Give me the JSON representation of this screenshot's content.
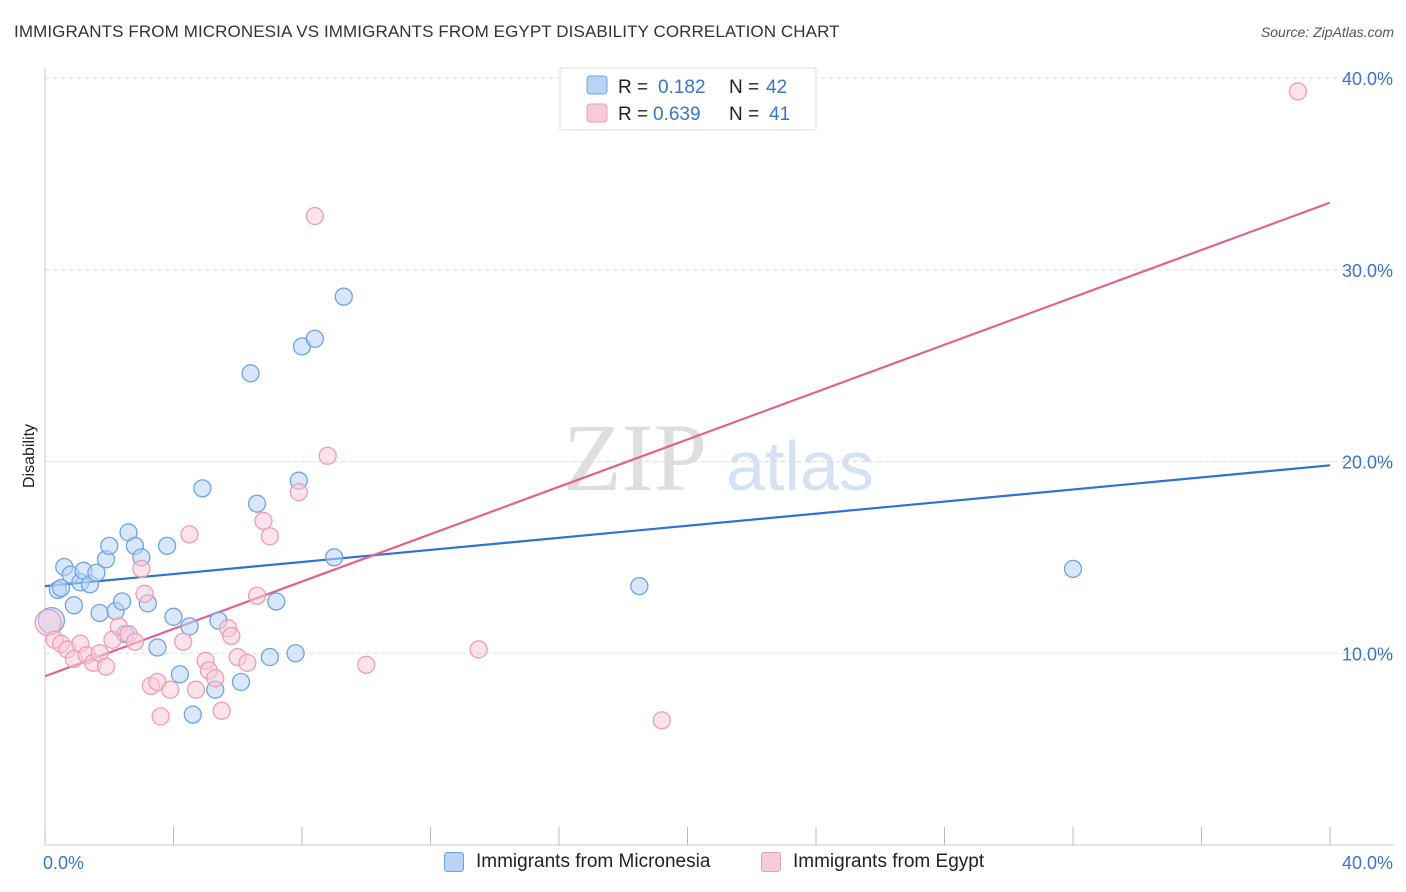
{
  "header": {
    "title": "IMMIGRANTS FROM MICRONESIA VS IMMIGRANTS FROM EGYPT DISABILITY CORRELATION CHART",
    "source": "Source: ZipAtlas.com"
  },
  "watermark": {
    "zip": "ZIP",
    "atlas": "atlas"
  },
  "legend": {
    "rows": [
      {
        "r_label": "R =",
        "r_value": "0.182",
        "n_label": "N =",
        "n_value": "42"
      },
      {
        "r_label": "R =",
        "r_value": "0.639",
        "n_label": "N =",
        "n_value": "41"
      }
    ]
  },
  "bottom_legend": {
    "items": [
      {
        "label": "Immigrants from Micronesia"
      },
      {
        "label": "Immigrants from Egypt"
      }
    ]
  },
  "chart_data": {
    "type": "scatter",
    "title": "IMMIGRANTS FROM MICRONESIA VS IMMIGRANTS FROM EGYPT DISABILITY CORRELATION CHART",
    "xlabel": "",
    "ylabel": "Disability",
    "xlim": [
      0,
      40
    ],
    "ylim": [
      0,
      40
    ],
    "x_tick_labels": [
      "0.0%",
      "40.0%"
    ],
    "y_ticks": [
      10,
      20,
      30,
      40
    ],
    "y_tick_labels": [
      "10.0%",
      "20.0%",
      "30.0%",
      "40.0%"
    ],
    "grid": "horizontal dashed",
    "legend_position": "top-center",
    "series": [
      {
        "name": "Immigrants from Micronesia",
        "color": "#6fa3e6",
        "fill": "#b9d3f5",
        "line_color": "#2f72cf",
        "R": 0.182,
        "N": 42,
        "trend": {
          "x": [
            0,
            40
          ],
          "y": [
            13.5,
            19.8
          ]
        },
        "points": [
          [
            0.2,
            11.7
          ],
          [
            0.4,
            13.3
          ],
          [
            0.5,
            13.4
          ],
          [
            0.6,
            14.5
          ],
          [
            0.8,
            14.1
          ],
          [
            0.9,
            12.5
          ],
          [
            1.1,
            13.7
          ],
          [
            1.2,
            14.3
          ],
          [
            1.4,
            13.6
          ],
          [
            1.6,
            14.2
          ],
          [
            1.7,
            12.1
          ],
          [
            1.9,
            14.9
          ],
          [
            2.0,
            15.6
          ],
          [
            2.2,
            12.2
          ],
          [
            2.4,
            12.7
          ],
          [
            2.5,
            11.0
          ],
          [
            2.6,
            16.3
          ],
          [
            2.8,
            15.6
          ],
          [
            3.0,
            15.0
          ],
          [
            3.2,
            12.6
          ],
          [
            3.5,
            10.3
          ],
          [
            3.8,
            15.6
          ],
          [
            4.0,
            11.9
          ],
          [
            4.2,
            8.9
          ],
          [
            4.5,
            11.4
          ],
          [
            4.6,
            6.8
          ],
          [
            4.9,
            18.6
          ],
          [
            5.3,
            8.1
          ],
          [
            5.4,
            11.7
          ],
          [
            6.1,
            8.5
          ],
          [
            6.4,
            24.6
          ],
          [
            6.6,
            17.8
          ],
          [
            7.0,
            9.8
          ],
          [
            7.2,
            12.7
          ],
          [
            8.0,
            26.0
          ],
          [
            8.4,
            26.4
          ],
          [
            7.8,
            10.0
          ],
          [
            7.9,
            19.0
          ],
          [
            9.0,
            15.0
          ],
          [
            9.3,
            28.6
          ],
          [
            18.5,
            13.5
          ],
          [
            32.0,
            14.4
          ]
        ]
      },
      {
        "name": "Immigrants from Egypt",
        "color": "#ee9db6",
        "fill": "#f9cbd8",
        "line_color": "#e3628c",
        "R": 0.639,
        "N": 41,
        "trend": {
          "x": [
            0,
            40
          ],
          "y": [
            8.8,
            33.5
          ]
        },
        "points": [
          [
            0.1,
            11.6
          ],
          [
            0.3,
            10.7
          ],
          [
            0.5,
            10.5
          ],
          [
            0.7,
            10.2
          ],
          [
            0.9,
            9.7
          ],
          [
            1.1,
            10.5
          ],
          [
            1.3,
            9.9
          ],
          [
            1.5,
            9.5
          ],
          [
            1.7,
            10.0
          ],
          [
            1.9,
            9.3
          ],
          [
            2.1,
            10.7
          ],
          [
            2.3,
            11.4
          ],
          [
            2.6,
            11.0
          ],
          [
            2.8,
            10.6
          ],
          [
            3.0,
            14.4
          ],
          [
            3.1,
            13.1
          ],
          [
            3.3,
            8.3
          ],
          [
            3.5,
            8.5
          ],
          [
            3.6,
            6.7
          ],
          [
            3.9,
            8.1
          ],
          [
            4.3,
            10.6
          ],
          [
            4.5,
            16.2
          ],
          [
            4.7,
            8.1
          ],
          [
            5.0,
            9.6
          ],
          [
            5.1,
            9.1
          ],
          [
            5.3,
            8.7
          ],
          [
            5.5,
            7.0
          ],
          [
            5.7,
            11.3
          ],
          [
            5.8,
            10.9
          ],
          [
            6.0,
            9.8
          ],
          [
            6.3,
            9.5
          ],
          [
            6.6,
            13.0
          ],
          [
            6.8,
            16.9
          ],
          [
            7.0,
            16.1
          ],
          [
            7.9,
            18.4
          ],
          [
            8.4,
            32.8
          ],
          [
            8.8,
            20.3
          ],
          [
            10.0,
            9.4
          ],
          [
            13.5,
            10.2
          ],
          [
            19.2,
            6.5
          ],
          [
            39.0,
            39.3
          ]
        ]
      }
    ]
  }
}
